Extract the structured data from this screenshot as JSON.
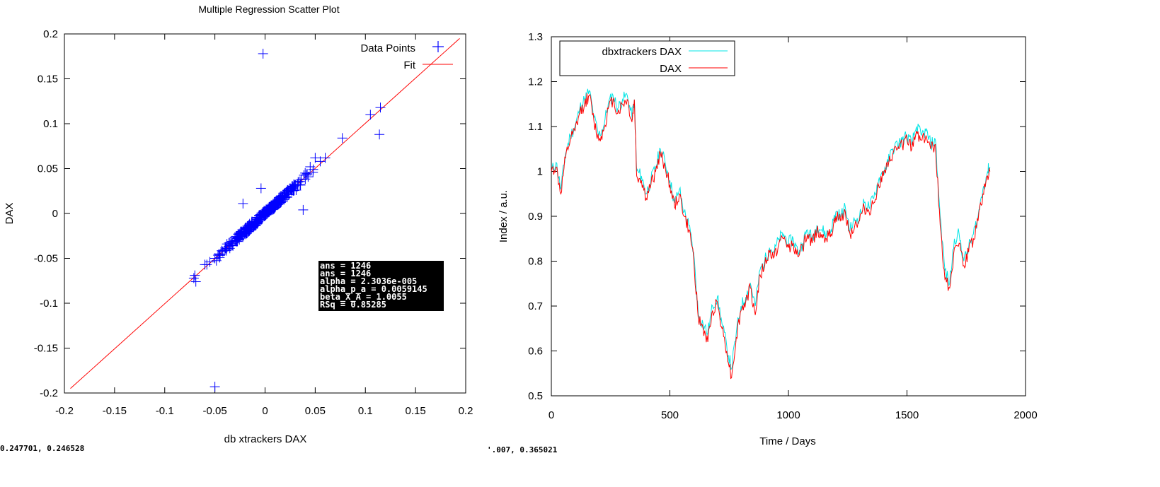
{
  "chart_data": [
    {
      "type": "scatter",
      "title": "Multiple Regression Scatter Plot",
      "xlabel": "db xtrackers DAX",
      "ylabel": "DAX",
      "xlim": [
        -0.2,
        0.2
      ],
      "ylim": [
        -0.2,
        0.2
      ],
      "x_ticks": [
        "-0.2",
        "-0.15",
        "-0.1",
        "-0.05",
        "0",
        "0.05",
        "0.1",
        "0.15",
        "0.2"
      ],
      "y_ticks": [
        "0.2",
        "0.15",
        "0.1",
        "0.05",
        "0",
        "-0.05",
        "-0.1",
        "-0.15",
        "-0.2"
      ],
      "grid": false,
      "legend_position": "top-right",
      "series": [
        {
          "name": "Data Points",
          "color": "#0000ff",
          "marker": "plus",
          "x": [
            -0.002,
            -0.05,
            0.105,
            0.115,
            0.114,
            0.077,
            0.06,
            0.05,
            0.055,
            0.045,
            0.04,
            0.036,
            0.03,
            0.025,
            0.02,
            0.018,
            0.015,
            0.012,
            0.01,
            0.008,
            0.005,
            0.003,
            0.001,
            -0.001,
            -0.003,
            -0.005,
            -0.008,
            -0.01,
            -0.012,
            -0.015,
            -0.018,
            -0.02,
            -0.022,
            -0.025,
            -0.028,
            -0.03,
            -0.035,
            -0.04,
            -0.045,
            -0.05,
            -0.055,
            -0.058,
            -0.06,
            -0.07,
            -0.071,
            -0.069,
            -0.004,
            -0.022,
            0.038,
            0.033,
            0.027,
            0.022,
            0.017,
            0.013,
            0.009,
            0.006,
            0.002,
            -0.006,
            -0.011,
            -0.016,
            -0.024,
            -0.032,
            -0.038,
            -0.046,
            0.031,
            0.028,
            0.024,
            0.019,
            0.014,
            0.004,
            -0.007,
            -0.013,
            -0.019,
            -0.027,
            0.042,
            0.048,
            0.021,
            0.011
          ],
          "y": [
            0.178,
            -0.193,
            0.11,
            0.118,
            0.088,
            0.084,
            0.062,
            0.062,
            0.058,
            0.052,
            0.045,
            0.038,
            0.032,
            0.028,
            0.022,
            0.02,
            0.016,
            0.013,
            0.011,
            0.009,
            0.006,
            0.003,
            0.002,
            -0.001,
            -0.003,
            -0.005,
            -0.008,
            -0.01,
            -0.012,
            -0.016,
            -0.018,
            -0.021,
            -0.022,
            -0.026,
            -0.028,
            -0.03,
            -0.035,
            -0.041,
            -0.046,
            -0.05,
            -0.054,
            -0.057,
            -0.057,
            -0.069,
            -0.072,
            -0.076,
            0.028,
            0.011,
            0.004,
            0.035,
            0.026,
            0.018,
            0.019,
            0.012,
            0.008,
            0.009,
            0.0,
            -0.002,
            -0.014,
            -0.013,
            -0.02,
            -0.036,
            -0.034,
            -0.045,
            0.026,
            0.029,
            0.021,
            0.022,
            0.011,
            0.007,
            -0.01,
            -0.009,
            -0.022,
            -0.023,
            0.044,
            0.049,
            0.024,
            0.012
          ]
        },
        {
          "name": "Fit",
          "color": "#ff0000",
          "type": "line",
          "x": [
            -0.194,
            0.194
          ],
          "y": [
            -0.195,
            0.195
          ]
        }
      ],
      "stats_box": [
        "ans =  1246",
        "ans =  1246",
        "alpha = 2.3036e-005",
        "alpha_p_a =  0.0059145",
        "beta_X_A =  1.0055",
        "RSq =  0.85285"
      ]
    },
    {
      "type": "line",
      "title": "",
      "xlabel": "Time / Days",
      "ylabel": "Index / a.u.",
      "xlim": [
        0,
        2000
      ],
      "ylim": [
        0.5,
        1.3
      ],
      "x_ticks": [
        "0",
        "500",
        "1000",
        "1500",
        "2000"
      ],
      "y_ticks": [
        "1.3",
        "1.2",
        "1.1",
        "1",
        "0.9",
        "0.8",
        "0.7",
        "0.6",
        "0.5"
      ],
      "grid": false,
      "legend_position": "top-left",
      "series": [
        {
          "name": "dbxtrackers DAX",
          "color": "#00e5e5",
          "x": [
            0,
            20,
            40,
            60,
            80,
            100,
            120,
            140,
            160,
            180,
            200,
            220,
            240,
            260,
            280,
            300,
            320,
            340,
            350,
            360,
            380,
            400,
            420,
            440,
            460,
            480,
            500,
            520,
            540,
            560,
            580,
            600,
            620,
            640,
            660,
            680,
            700,
            720,
            740,
            760,
            780,
            800,
            820,
            840,
            860,
            880,
            900,
            920,
            940,
            960,
            980,
            1000,
            1020,
            1040,
            1060,
            1080,
            1100,
            1120,
            1140,
            1160,
            1180,
            1200,
            1220,
            1240,
            1260,
            1280,
            1300,
            1320,
            1340,
            1360,
            1380,
            1400,
            1420,
            1440,
            1460,
            1480,
            1500,
            1520,
            1540,
            1560,
            1580,
            1600,
            1620,
            1640,
            1660,
            1680,
            1700,
            1720,
            1740,
            1760,
            1780,
            1800,
            1820,
            1840,
            1850
          ],
          "y": [
            1.0,
            1.02,
            0.96,
            1.04,
            1.08,
            1.1,
            1.14,
            1.16,
            1.18,
            1.12,
            1.08,
            1.1,
            1.15,
            1.17,
            1.14,
            1.16,
            1.17,
            1.12,
            1.16,
            1.0,
            0.99,
            0.95,
            0.98,
            1.01,
            1.05,
            1.02,
            0.98,
            0.93,
            0.96,
            0.91,
            0.88,
            0.82,
            0.68,
            0.66,
            0.64,
            0.7,
            0.72,
            0.66,
            0.61,
            0.56,
            0.64,
            0.7,
            0.72,
            0.75,
            0.7,
            0.78,
            0.8,
            0.83,
            0.82,
            0.85,
            0.86,
            0.84,
            0.85,
            0.82,
            0.84,
            0.87,
            0.85,
            0.88,
            0.87,
            0.86,
            0.87,
            0.91,
            0.9,
            0.92,
            0.87,
            0.89,
            0.9,
            0.93,
            0.92,
            0.94,
            0.98,
            1.0,
            1.02,
            1.05,
            1.06,
            1.07,
            1.08,
            1.06,
            1.1,
            1.08,
            1.09,
            1.06,
            1.07,
            0.9,
            0.78,
            0.75,
            0.85,
            0.86,
            0.8,
            0.83,
            0.86,
            0.9,
            0.96,
            1.0,
            1.01
          ]
        },
        {
          "name": "DAX",
          "color": "#ff0000",
          "x": [
            0,
            20,
            40,
            60,
            80,
            100,
            120,
            140,
            160,
            180,
            200,
            220,
            240,
            260,
            280,
            300,
            320,
            340,
            350,
            360,
            380,
            400,
            420,
            440,
            460,
            480,
            500,
            520,
            540,
            560,
            580,
            600,
            620,
            640,
            660,
            680,
            700,
            720,
            740,
            760,
            780,
            800,
            820,
            840,
            860,
            880,
            900,
            920,
            940,
            960,
            980,
            1000,
            1020,
            1040,
            1060,
            1080,
            1100,
            1120,
            1140,
            1160,
            1180,
            1200,
            1220,
            1240,
            1260,
            1280,
            1300,
            1320,
            1340,
            1360,
            1380,
            1400,
            1420,
            1440,
            1460,
            1480,
            1500,
            1520,
            1540,
            1560,
            1580,
            1600,
            1620,
            1640,
            1660,
            1680,
            1700,
            1720,
            1740,
            1760,
            1780,
            1800,
            1820,
            1840,
            1850
          ],
          "y": [
            1.0,
            1.01,
            0.95,
            1.03,
            1.07,
            1.09,
            1.13,
            1.15,
            1.17,
            1.11,
            1.07,
            1.09,
            1.14,
            1.16,
            1.13,
            1.15,
            1.16,
            1.11,
            1.16,
            0.99,
            0.98,
            0.94,
            0.97,
            1.0,
            1.04,
            1.01,
            0.97,
            0.92,
            0.95,
            0.9,
            0.87,
            0.81,
            0.67,
            0.65,
            0.62,
            0.69,
            0.71,
            0.65,
            0.6,
            0.54,
            0.63,
            0.69,
            0.71,
            0.74,
            0.68,
            0.77,
            0.79,
            0.82,
            0.81,
            0.84,
            0.85,
            0.83,
            0.84,
            0.81,
            0.83,
            0.86,
            0.84,
            0.87,
            0.86,
            0.85,
            0.86,
            0.9,
            0.89,
            0.91,
            0.86,
            0.88,
            0.89,
            0.92,
            0.91,
            0.93,
            0.97,
            0.99,
            1.01,
            1.04,
            1.05,
            1.06,
            1.07,
            1.05,
            1.09,
            1.07,
            1.08,
            1.05,
            1.06,
            0.88,
            0.76,
            0.74,
            0.83,
            0.84,
            0.79,
            0.82,
            0.85,
            0.89,
            0.95,
            0.99,
            1.0
          ]
        }
      ]
    }
  ],
  "status_left": "0.247701, 0.246528",
  "status_right": "'.007, 0.365021"
}
